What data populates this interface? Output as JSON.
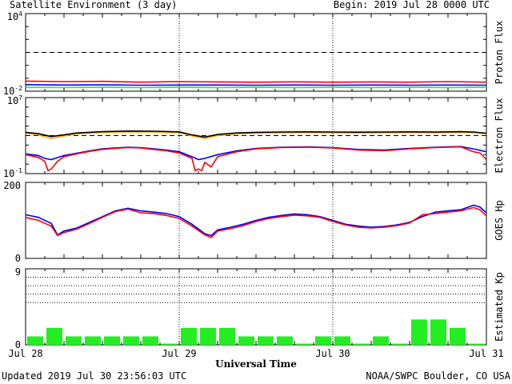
{
  "header": {
    "title": "Satellite Environment (3 day)",
    "begin": "Begin:  2019 Jul 28 0000 UTC"
  },
  "footer": {
    "updated": "Updated 2019 Jul 30 23:56:03 UTC",
    "credit": "NOAA/SWPC Boulder, CO USA"
  },
  "colors": {
    "red": "#ff0000",
    "blue": "#0000ff",
    "green": "#22ee22",
    "orange": "#ffa500",
    "black": "#000000"
  },
  "chart_data": [
    {
      "type": "line",
      "name": "proton-flux",
      "ylabel": "Proton Flux",
      "yscale": "log",
      "ylim": [
        0.01,
        10000
      ],
      "yticks": [
        {
          "value": 10000,
          "label": "10^4"
        },
        {
          "value": 0.01,
          "label": "10^-2"
        }
      ],
      "threshold": 10,
      "xlim": [
        0,
        72
      ],
      "series": [
        {
          "color": "red",
          "x": [
            0,
            6,
            12,
            18,
            24,
            30,
            36,
            42,
            48,
            54,
            60,
            66,
            72
          ],
          "y": [
            0.06,
            0.055,
            0.058,
            0.05,
            0.055,
            0.052,
            0.05,
            0.053,
            0.05,
            0.052,
            0.05,
            0.055,
            0.05
          ]
        },
        {
          "color": "blue",
          "x": [
            0,
            6,
            12,
            18,
            24,
            30,
            36,
            42,
            48,
            54,
            60,
            66,
            72
          ],
          "y": [
            0.032,
            0.03,
            0.031,
            0.029,
            0.03,
            0.03,
            0.029,
            0.03,
            0.029,
            0.03,
            0.029,
            0.03,
            0.029
          ]
        },
        {
          "color": "green",
          "x": [
            0,
            6,
            12,
            18,
            24,
            30,
            36,
            42,
            48,
            54,
            60,
            66,
            72
          ],
          "y": [
            0.02,
            0.019,
            0.02,
            0.019,
            0.02,
            0.019,
            0.02,
            0.019,
            0.02,
            0.019,
            0.02,
            0.019,
            0.02
          ]
        }
      ]
    },
    {
      "type": "line",
      "name": "electron-flux",
      "ylabel": "Electron Flux",
      "yscale": "log",
      "ylim": [
        0.1,
        10000000
      ],
      "yticks": [
        {
          "value": 10000000,
          "label": "10^7"
        },
        {
          "value": 0.1,
          "label": "10^-1"
        }
      ],
      "threshold": 1000,
      "xlim": [
        0,
        72
      ],
      "series": [
        {
          "color": "orange",
          "x": [
            0,
            2,
            4,
            6,
            8,
            12,
            16,
            20,
            24,
            26,
            28,
            30,
            33,
            36,
            40,
            44,
            48,
            52,
            56,
            60,
            64,
            68,
            70,
            72
          ],
          "y": [
            1800,
            1200,
            500,
            900,
            1500,
            2200,
            2500,
            2400,
            2000,
            900,
            500,
            1000,
            1500,
            1800,
            2000,
            2100,
            2000,
            1900,
            2000,
            2100,
            2000,
            2200,
            2000,
            1500
          ]
        },
        {
          "color": "black",
          "x": [
            0,
            2,
            4,
            6,
            8,
            12,
            16,
            20,
            24,
            26,
            28,
            30,
            33,
            36,
            40,
            44,
            48,
            52,
            56,
            60,
            64,
            68,
            70,
            72
          ],
          "y": [
            2200,
            1600,
            800,
            1200,
            1900,
            2600,
            3000,
            2900,
            2500,
            1200,
            700,
            1300,
            1900,
            2200,
            2400,
            2500,
            2400,
            2300,
            2400,
            2500,
            2400,
            2600,
            2400,
            1800
          ]
        },
        {
          "color": "blue",
          "x": [
            0,
            2,
            3,
            4,
            6,
            8,
            10,
            12,
            14,
            16,
            18,
            20,
            22,
            24,
            26,
            27,
            28,
            30,
            33,
            36,
            40,
            44,
            48,
            52,
            56,
            60,
            64,
            68,
            70,
            72
          ],
          "y": [
            12,
            8,
            4,
            3,
            8,
            14,
            25,
            40,
            50,
            60,
            55,
            40,
            30,
            20,
            6,
            3,
            4,
            10,
            25,
            45,
            60,
            65,
            55,
            35,
            30,
            45,
            60,
            70,
            40,
            20
          ]
        },
        {
          "color": "red",
          "x": [
            0,
            2,
            3,
            3.5,
            4,
            5,
            6,
            8,
            10,
            12,
            14,
            16,
            18,
            20,
            22,
            24,
            26,
            26.5,
            27,
            27.5,
            28,
            29,
            30,
            33,
            36,
            40,
            44,
            48,
            52,
            56,
            60,
            64,
            68,
            70,
            71,
            72
          ],
          "y": [
            10,
            5,
            2,
            0.2,
            0.3,
            2,
            6,
            12,
            22,
            35,
            45,
            55,
            50,
            35,
            25,
            15,
            4,
            0.2,
            0.3,
            0.2,
            1.5,
            0.5,
            6,
            20,
            40,
            55,
            60,
            50,
            30,
            25,
            40,
            55,
            65,
            20,
            15,
            3
          ]
        }
      ]
    },
    {
      "type": "line",
      "name": "goes-hp",
      "ylabel": "GOES Hp",
      "ylim": [
        0,
        200
      ],
      "yticks": [
        {
          "value": 200,
          "label": "200"
        },
        {
          "value": 0,
          "label": "0"
        }
      ],
      "xlim": [
        0,
        72
      ],
      "series": [
        {
          "color": "blue",
          "x": [
            0,
            2,
            4,
            5,
            6,
            8,
            10,
            12,
            14,
            16,
            18,
            20,
            22,
            24,
            26,
            28,
            29,
            30,
            32,
            34,
            36,
            38,
            40,
            42,
            44,
            46,
            48,
            50,
            52,
            54,
            56,
            58,
            60,
            62,
            64,
            66,
            68,
            70,
            71,
            72
          ],
          "y": [
            115,
            108,
            92,
            62,
            72,
            80,
            95,
            110,
            125,
            132,
            125,
            122,
            118,
            110,
            90,
            65,
            60,
            75,
            82,
            90,
            100,
            108,
            113,
            117,
            115,
            110,
            100,
            90,
            85,
            82,
            84,
            88,
            95,
            110,
            122,
            125,
            128,
            140,
            135,
            120
          ]
        },
        {
          "color": "red",
          "x": [
            0,
            2,
            4,
            5,
            6,
            8,
            10,
            12,
            14,
            16,
            18,
            20,
            22,
            24,
            26,
            28,
            29,
            30,
            32,
            34,
            36,
            38,
            40,
            42,
            44,
            46,
            48,
            50,
            52,
            54,
            56,
            58,
            60,
            62,
            64,
            66,
            68,
            70,
            71,
            72
          ],
          "y": [
            108,
            100,
            85,
            60,
            68,
            77,
            92,
            108,
            123,
            130,
            120,
            118,
            113,
            105,
            85,
            62,
            55,
            72,
            78,
            86,
            97,
            105,
            110,
            114,
            112,
            108,
            97,
            88,
            82,
            80,
            82,
            86,
            93,
            115,
            118,
            122,
            125,
            134,
            128,
            112
          ]
        }
      ]
    },
    {
      "type": "bar",
      "name": "estimated-kp",
      "ylabel": "Estimated Kp",
      "ylim": [
        0,
        9
      ],
      "yticks": [
        {
          "value": 9,
          "label": "9"
        },
        {
          "value": 0,
          "label": "0"
        }
      ],
      "gridlines": [
        5,
        6,
        7,
        8,
        9
      ],
      "interval_hours": 3,
      "values": [
        1,
        2,
        1,
        1,
        1,
        1,
        1,
        0,
        2,
        2,
        2,
        1,
        1,
        1,
        0,
        1,
        1,
        0,
        1,
        0,
        3,
        3,
        2,
        0
      ],
      "xticks": [
        {
          "value": 0,
          "label": "Jul 28"
        },
        {
          "value": 24,
          "label": "Jul 29"
        },
        {
          "value": 48,
          "label": "Jul 30"
        },
        {
          "value": 72,
          "label": "Jul 31"
        }
      ],
      "xlabel": "Universal Time"
    }
  ]
}
